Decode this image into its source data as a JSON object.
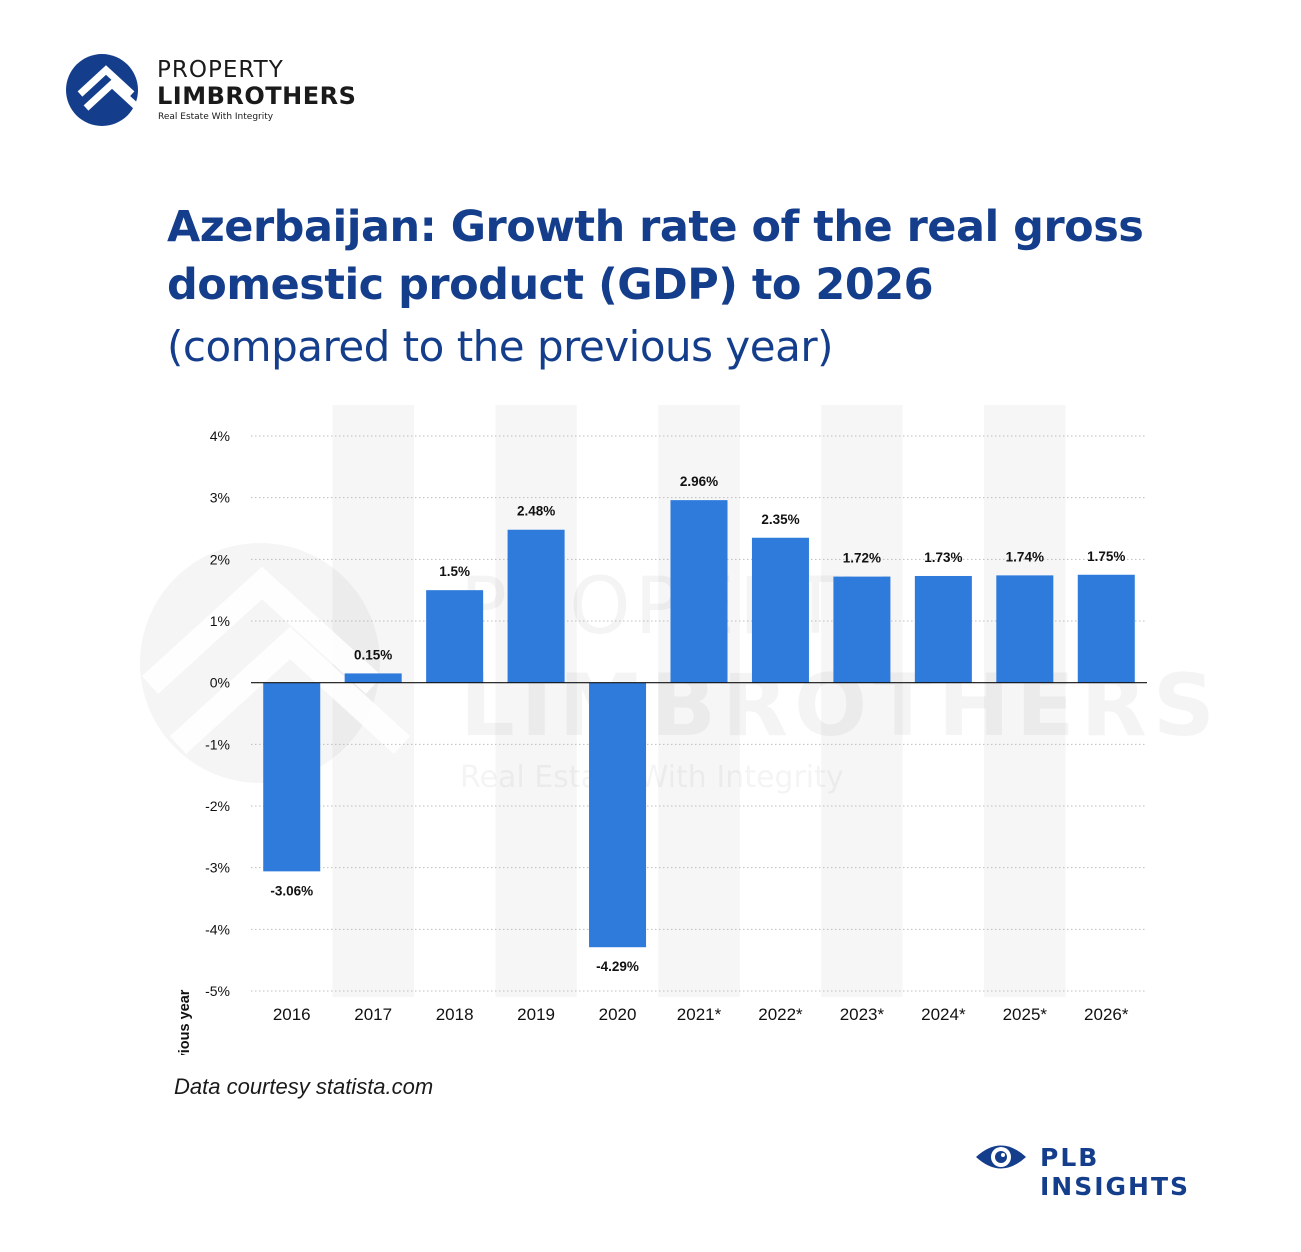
{
  "logo": {
    "line1": "PROPERTY",
    "line2": "LIMBROTHERS",
    "line3": "Real Estate With Integrity",
    "icon": "house-roof-circle-icon",
    "color": "#143e8c"
  },
  "title": "Azerbaijan: Growth rate of the real gross domestic product (GDP) to 2026",
  "subtitle": "(compared to the previous year)",
  "watermark": {
    "line1": "PROPERTY",
    "line2": "LIMBROTHERS",
    "line3": "Real Estate With Integrity"
  },
  "chart_data": {
    "type": "bar",
    "title": "Azerbaijan: Growth rate of the real gross domestic product (GDP) to 2026",
    "subtitle": "(compared to the previous year)",
    "xlabel": "",
    "ylabel": "GDP growth compared to previous year",
    "categories": [
      "2016",
      "2017",
      "2018",
      "2019",
      "2020",
      "2021*",
      "2022*",
      "2023*",
      "2024*",
      "2025*",
      "2026*"
    ],
    "values": [
      -3.06,
      0.15,
      1.5,
      2.48,
      -4.29,
      2.96,
      2.35,
      1.72,
      1.73,
      1.74,
      1.75
    ],
    "data_labels": [
      "-3.06%",
      "0.15%",
      "1.5%",
      "2.48%",
      "-4.29%",
      "2.96%",
      "2.35%",
      "1.72%",
      "1.73%",
      "1.74%",
      "1.75%"
    ],
    "ylim": [
      -5,
      4
    ],
    "yticks": [
      4,
      3,
      2,
      1,
      0,
      -1,
      -2,
      -3,
      -4,
      -5
    ],
    "ytick_labels": [
      "4%",
      "3%",
      "2%",
      "1%",
      "0%",
      "-1%",
      "-2%",
      "-3%",
      "-4%",
      "-5%"
    ],
    "grid": true,
    "legend": "none",
    "bar_color": "#2f7bdc"
  },
  "source": "Data courtesy statista.com",
  "brand": {
    "text": "PLB INSIGHTS",
    "icon": "eye-icon",
    "color": "#143e8c"
  }
}
